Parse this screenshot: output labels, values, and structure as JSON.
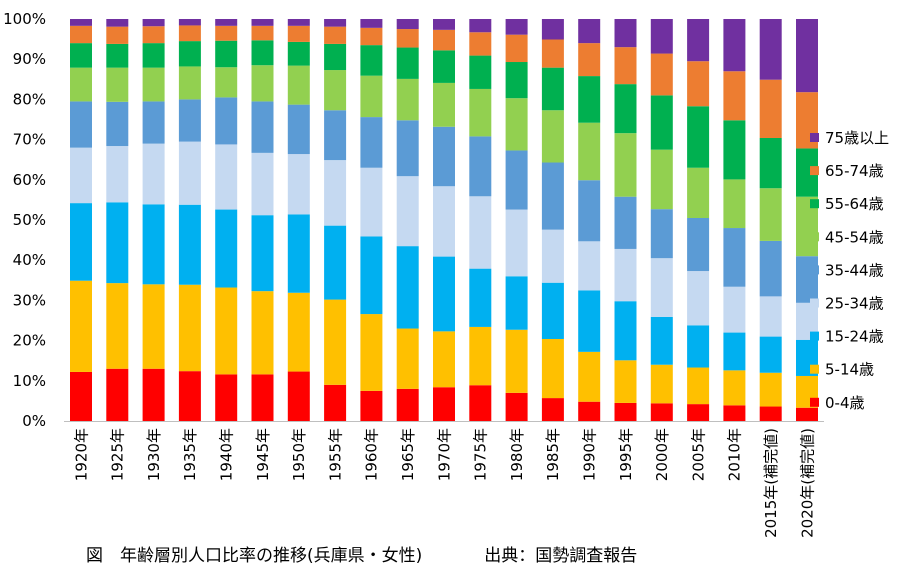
{
  "caption": {
    "title": "図　年齢層別人口比率の推移(兵庫県・女性)",
    "source": "出典：国勢調査報告"
  },
  "chart_data": {
    "type": "bar",
    "stacked": true,
    "percent": true,
    "categories": [
      "1920年",
      "1925年",
      "1930年",
      "1935年",
      "1940年",
      "1945年",
      "1950年",
      "1955年",
      "1960年",
      "1965年",
      "1970年",
      "1975年",
      "1980年",
      "1985年",
      "1990年",
      "1995年",
      "2000年",
      "2005年",
      "2010年",
      "2015年(補完値)",
      "2020年(補完値)"
    ],
    "y_ticks": [
      "0%",
      "10%",
      "20%",
      "30%",
      "40%",
      "50%",
      "60%",
      "70%",
      "80%",
      "90%",
      "100%"
    ],
    "ylim": [
      0,
      100
    ],
    "grid": false,
    "legend_placement": "right",
    "series": [
      {
        "name": "0-4歳",
        "color": "#ff0000",
        "values": [
          12.2,
          13.0,
          13.0,
          12.4,
          11.6,
          11.6,
          12.3,
          9.0,
          7.5,
          8.0,
          8.4,
          8.9,
          7.0,
          5.7,
          4.8,
          4.5,
          4.4,
          4.2,
          3.9,
          3.6,
          3.3
        ]
      },
      {
        "name": "5-14歳",
        "color": "#ffc000",
        "values": [
          22.7,
          21.3,
          21.0,
          21.5,
          21.6,
          20.7,
          19.6,
          21.2,
          19.1,
          15.0,
          13.9,
          14.5,
          15.7,
          14.7,
          12.4,
          10.6,
          9.6,
          9.1,
          8.7,
          8.4,
          7.9
        ]
      },
      {
        "name": "15-24歳",
        "color": "#00b0f0",
        "values": [
          19.3,
          20.1,
          19.9,
          19.9,
          19.4,
          18.9,
          19.5,
          18.4,
          19.3,
          20.5,
          18.6,
          14.5,
          13.3,
          14.0,
          15.3,
          14.7,
          11.9,
          10.5,
          9.4,
          9.0,
          9.0
        ]
      },
      {
        "name": "25-34歳",
        "color": "#c5d9f1",
        "values": [
          13.8,
          14.0,
          15.1,
          15.7,
          16.2,
          15.5,
          15.0,
          16.3,
          17.1,
          17.4,
          17.5,
          18.0,
          16.6,
          13.2,
          12.2,
          13.0,
          14.6,
          13.5,
          11.4,
          10.0,
          9.2
        ]
      },
      {
        "name": "35-44歳",
        "color": "#5b9bd5",
        "values": [
          11.5,
          11.0,
          10.5,
          10.5,
          11.7,
          12.8,
          12.3,
          12.4,
          12.6,
          13.9,
          14.8,
          14.9,
          14.7,
          16.7,
          15.2,
          13.0,
          12.2,
          13.2,
          14.6,
          13.8,
          11.6
        ]
      },
      {
        "name": "45-54歳",
        "color": "#92d050",
        "values": [
          8.4,
          8.5,
          8.4,
          8.2,
          7.5,
          9.0,
          9.7,
          10.0,
          10.3,
          10.3,
          10.9,
          11.8,
          13.0,
          13.0,
          14.3,
          15.8,
          14.8,
          12.5,
          12.1,
          13.1,
          14.8
        ]
      },
      {
        "name": "55-64歳",
        "color": "#00b050",
        "values": [
          6.1,
          5.9,
          6.1,
          6.3,
          6.6,
          6.2,
          5.9,
          6.5,
          7.6,
          7.8,
          8.1,
          8.3,
          9.0,
          10.6,
          11.6,
          12.2,
          13.5,
          15.3,
          14.7,
          12.5,
          12.0
        ]
      },
      {
        "name": "65-74歳",
        "color": "#ed7d31",
        "values": [
          4.3,
          4.3,
          4.2,
          3.9,
          3.7,
          3.6,
          4.0,
          4.3,
          4.3,
          4.6,
          5.1,
          5.8,
          6.8,
          7.0,
          8.2,
          9.2,
          10.4,
          11.2,
          12.2,
          14.5,
          14.0
        ]
      },
      {
        "name": "75歳以上",
        "color": "#7030a0",
        "values": [
          1.7,
          1.9,
          1.8,
          1.6,
          1.7,
          1.7,
          1.7,
          1.9,
          2.2,
          2.5,
          2.7,
          3.3,
          3.9,
          5.1,
          6.0,
          7.0,
          8.6,
          10.5,
          13.0,
          15.1,
          18.2
        ]
      }
    ]
  }
}
